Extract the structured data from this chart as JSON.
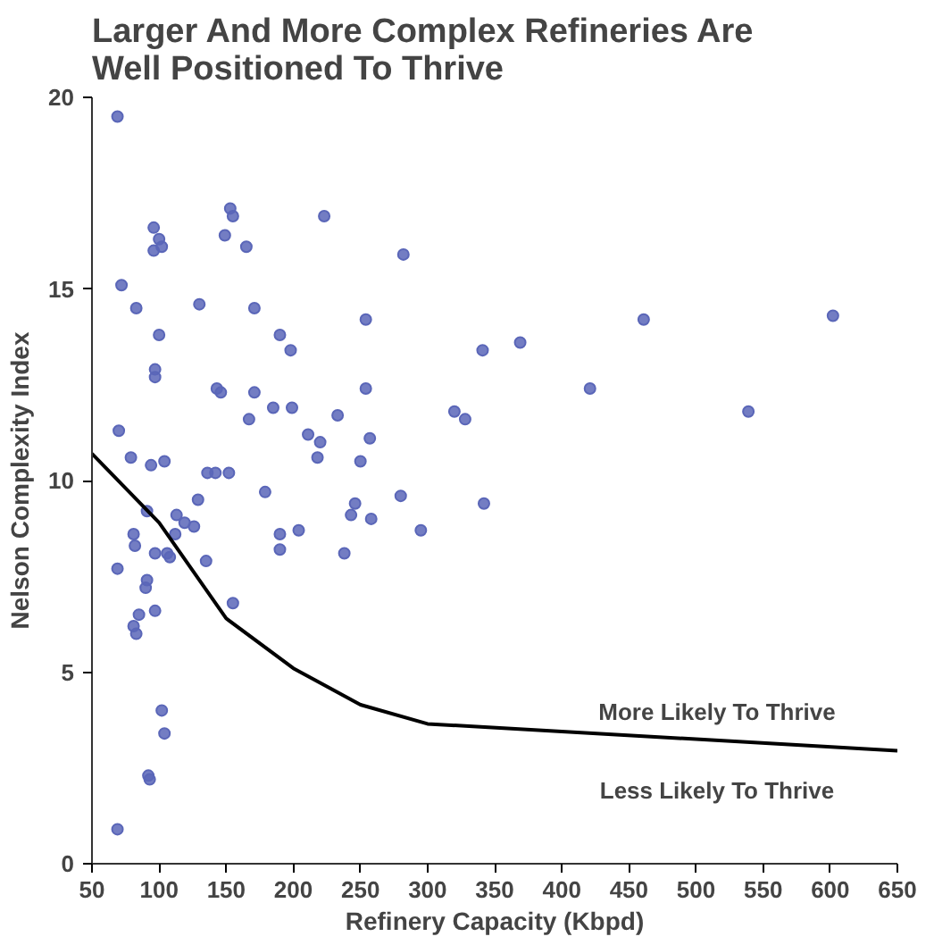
{
  "chart_data": {
    "type": "scatter",
    "title": "Larger And More Complex Refineries Are Well Positioned To Thrive",
    "xlabel": "Refinery Capacity (Kbpd)",
    "ylabel": "Nelson Complexity Index",
    "xlim": [
      50,
      650
    ],
    "ylim": [
      0,
      20
    ],
    "xticks": [
      50,
      100,
      150,
      200,
      250,
      300,
      350,
      400,
      450,
      500,
      550,
      600,
      650
    ],
    "yticks": [
      0,
      5,
      10,
      15,
      20
    ],
    "grid": false,
    "series": [
      {
        "marker": "circle",
        "color": "#5a66b8",
        "x": [
          69,
          96,
          100,
          96,
          102,
          153,
          155,
          149,
          165,
          223,
          72,
          83,
          130,
          171,
          100,
          190,
          198,
          97,
          97,
          143,
          146,
          171,
          185,
          199,
          167,
          233,
          70,
          211,
          220,
          218,
          79,
          94,
          104,
          136,
          142,
          152,
          91,
          113,
          129,
          179,
          119,
          126,
          81,
          82,
          97,
          106,
          108,
          112,
          190,
          190,
          204,
          135,
          69,
          91,
          90,
          97,
          155,
          85,
          81,
          83,
          102,
          104,
          92,
          93,
          69,
          282,
          254,
          461,
          602,
          341,
          369,
          254,
          421,
          320,
          328,
          539,
          257,
          250,
          280,
          246,
          243,
          258,
          342,
          295,
          238
        ],
        "values": [
          19.5,
          16.6,
          16.3,
          16.0,
          16.1,
          17.1,
          16.9,
          16.4,
          16.1,
          16.9,
          15.1,
          14.5,
          14.6,
          14.5,
          13.8,
          13.8,
          13.4,
          12.9,
          12.7,
          12.4,
          12.3,
          12.3,
          11.9,
          11.9,
          11.6,
          11.7,
          11.3,
          11.2,
          11.0,
          10.6,
          10.6,
          10.4,
          10.5,
          10.2,
          10.2,
          10.2,
          9.2,
          9.1,
          9.5,
          9.7,
          8.9,
          8.8,
          8.6,
          8.3,
          8.1,
          8.1,
          8.0,
          8.6,
          8.6,
          8.2,
          8.7,
          7.9,
          7.7,
          7.4,
          7.2,
          6.6,
          6.8,
          6.5,
          6.2,
          6.0,
          4.0,
          3.4,
          2.3,
          2.2,
          0.9,
          15.9,
          14.2,
          14.2,
          14.3,
          13.4,
          13.6,
          12.4,
          12.4,
          11.8,
          11.6,
          11.8,
          11.1,
          10.5,
          9.6,
          9.4,
          9.1,
          9.0,
          9.4,
          8.7,
          8.1
        ]
      },
      {
        "type": "line",
        "color": "#000000",
        "x": [
          50,
          100,
          150,
          200,
          250,
          300,
          400,
          500,
          650
        ],
        "values": [
          10.7,
          8.9,
          6.4,
          5.1,
          4.15,
          3.65,
          3.45,
          3.25,
          2.95
        ]
      }
    ],
    "annotations": [
      "More Likely To Thrive",
      "Less Likely To Thrive"
    ]
  }
}
